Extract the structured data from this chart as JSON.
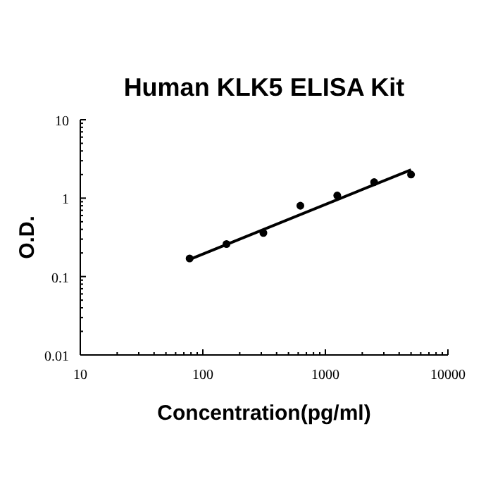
{
  "chart_data": {
    "type": "scatter",
    "title": "Human KLK5 ELISA Kit",
    "xlabel": "Concentration(pg/ml)",
    "ylabel": "O.D.",
    "log": "xy",
    "grid": false,
    "xlim": [
      10,
      10000
    ],
    "ylim": [
      0.01,
      10
    ],
    "xticks": [
      10,
      {
        "value": 20,
        "label": null
      },
      {
        "value": 30,
        "label": null
      },
      {
        "value": 40,
        "label": null
      },
      {
        "value": 50,
        "label": null
      },
      {
        "value": 60,
        "label": null
      },
      {
        "value": 70,
        "label": null
      },
      {
        "value": 80,
        "label": null
      },
      {
        "value": 90,
        "label": null
      },
      100,
      {
        "value": 200,
        "label": null
      },
      {
        "value": 300,
        "label": null
      },
      {
        "value": 400,
        "label": null
      },
      {
        "value": 500,
        "label": null
      },
      {
        "value": 600,
        "label": null
      },
      {
        "value": 700,
        "label": null
      },
      {
        "value": 800,
        "label": null
      },
      {
        "value": 900,
        "label": null
      },
      1000,
      {
        "value": 2000,
        "label": null
      },
      {
        "value": 3000,
        "label": null
      },
      {
        "value": 4000,
        "label": null
      },
      {
        "value": 5000,
        "label": null
      },
      {
        "value": 6000,
        "label": null
      },
      {
        "value": 7000,
        "label": null
      },
      {
        "value": 8000,
        "label": null
      },
      {
        "value": 9000,
        "label": null
      },
      10000
    ],
    "yticks": [
      0.01,
      {
        "value": 0.02,
        "label": null
      },
      {
        "value": 0.03,
        "label": null
      },
      {
        "value": 0.04,
        "label": null
      },
      {
        "value": 0.05,
        "label": null
      },
      {
        "value": 0.06,
        "label": null
      },
      {
        "value": 0.07,
        "label": null
      },
      {
        "value": 0.08,
        "label": null
      },
      {
        "value": 0.09,
        "label": null
      },
      0.1,
      {
        "value": 0.2,
        "label": null
      },
      {
        "value": 0.3,
        "label": null
      },
      {
        "value": 0.4,
        "label": null
      },
      {
        "value": 0.5,
        "label": null
      },
      {
        "value": 0.6,
        "label": null
      },
      {
        "value": 0.7,
        "label": null
      },
      {
        "value": 0.8,
        "label": null
      },
      {
        "value": 0.9,
        "label": null
      },
      1,
      {
        "value": 2,
        "label": null
      },
      {
        "value": 3,
        "label": null
      },
      {
        "value": 4,
        "label": null
      },
      {
        "value": 5,
        "label": null
      },
      {
        "value": 6,
        "label": null
      },
      {
        "value": 7,
        "label": null
      },
      {
        "value": 8,
        "label": null
      },
      {
        "value": 9,
        "label": null
      },
      10
    ],
    "series": [
      {
        "marker": "circle",
        "color": "#000000",
        "x": [
          78,
          156,
          312,
          625,
          1250,
          2500,
          5000
        ],
        "values": [
          0.17,
          0.26,
          0.36,
          0.8,
          1.08,
          1.6,
          2.0
        ]
      },
      {
        "type": "line",
        "color": "#000000",
        "x": [
          78,
          5000
        ],
        "values": [
          0.165,
          2.3
        ]
      }
    ]
  }
}
